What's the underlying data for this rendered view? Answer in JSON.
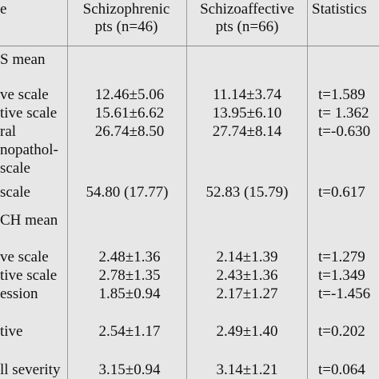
{
  "header": {
    "col_label": "e",
    "schizophrenic_line1": "Schizophrenic",
    "schizophrenic_line2": "pts (n=46)",
    "schizoaffective_line1": "Schizoaffective",
    "schizoaffective_line2": "pts (n=66)",
    "statistics": "Statistics"
  },
  "section1": {
    "title": "S mean",
    "rows": [
      {
        "label": "ve scale",
        "a": "12.46±5.06",
        "b": "11.14±3.74",
        "s": "t=1.589"
      },
      {
        "label": "tive scale",
        "a": "15.61±6.62",
        "b": "13.95±6.10",
        "s": "t= 1.362"
      },
      {
        "label": "ral",
        "a": "26.74±8.50",
        "b": "27.74±8.14",
        "s": "t=-0.630"
      },
      {
        "label": "nopathol-",
        "a": "",
        "b": "",
        "s": ""
      },
      {
        "label": " scale",
        "a": "",
        "b": "",
        "s": ""
      },
      {
        "label": "scale",
        "a": "54.80 (17.77)",
        "b": "52.83 (15.79)",
        "s": "t=0.617"
      }
    ]
  },
  "section2": {
    "title": "CH mean",
    "rows": [
      {
        "label": "ve scale",
        "a": "2.48±1.36",
        "b": "2.14±1.39",
        "s": "t=1.279"
      },
      {
        "label": "tive scale",
        "a": "2.78±1.35",
        "b": "2.43±1.36",
        "s": "t=1.349"
      },
      {
        "label": "ession",
        "a": "1.85±0.94",
        "b": "2.17±1.27",
        "s": "t=-1.456"
      },
      {
        "label": "tive",
        "a": "2.54±1.17",
        "b": "2.49±1.40",
        "s": "t=0.202"
      },
      {
        "label": "ll severity",
        "a": "3.15±0.94",
        "b": "3.14±1.21",
        "s": "t=0.064"
      }
    ]
  }
}
